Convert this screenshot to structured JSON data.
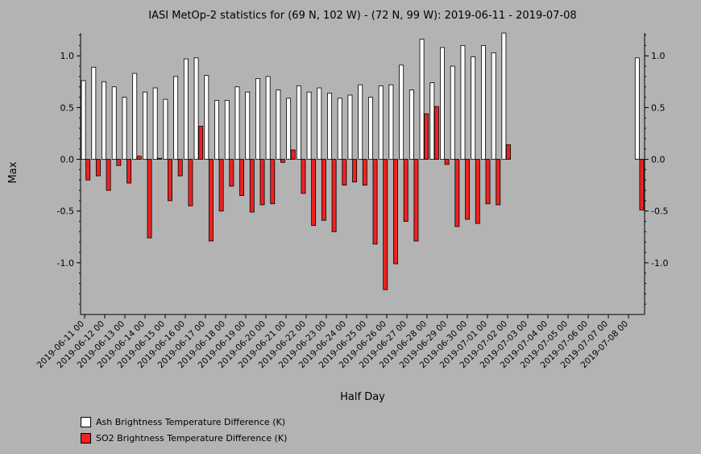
{
  "chart_data": {
    "type": "bar",
    "title": "IASI MetOp-2 statistics for (69 N, 102 W) - (72 N, 99 W): 2019-06-11 - 2019-07-08",
    "xlabel": "Half Day",
    "ylabel": "Max",
    "ylim": [
      -1.5,
      1.22
    ],
    "yticks": [
      -1.0,
      -0.5,
      0.0,
      0.5,
      1.0
    ],
    "ytick_labels": [
      "-1.0",
      "-0.5",
      "0.0",
      "0.5",
      "1.0"
    ],
    "x_tick_labels": [
      "2019-06-11 00",
      "2019-06-12 00",
      "2019-06-13 00",
      "2019-06-14 00",
      "2019-06-15 00",
      "2019-06-16 00",
      "2019-06-17 00",
      "2019-06-18 00",
      "2019-06-19 00",
      "2019-06-20 00",
      "2019-06-21 00",
      "2019-06-22 00",
      "2019-06-23 00",
      "2019-06-24 00",
      "2019-06-25 00",
      "2019-06-26 00",
      "2019-06-27 00",
      "2019-06-28 00",
      "2019-06-29 00",
      "2019-06-30 00",
      "2019-07-01 00",
      "2019-07-02 00",
      "2019-07-03 00",
      "2019-07-04 00",
      "2019-07-05 00",
      "2019-07-06 00",
      "2019-07-07 00",
      "2019-07-08 00"
    ],
    "legend_position": "bottom-left",
    "series": [
      {
        "name": "Ash Brightness Temperature Difference (K)",
        "color": "#ffffff",
        "values": [
          0.76,
          0.89,
          0.75,
          0.7,
          0.6,
          0.83,
          0.65,
          0.69,
          0.58,
          0.8,
          0.97,
          0.98,
          0.81,
          0.57,
          0.57,
          0.7,
          0.65,
          0.78,
          0.8,
          0.67,
          0.59,
          0.71,
          0.65,
          0.69,
          0.64,
          0.59,
          0.62,
          0.72,
          0.6,
          0.71,
          0.72,
          0.91,
          0.67,
          1.16,
          0.74,
          1.08,
          0.9,
          1.1,
          0.99,
          1.1,
          1.03,
          1.22,
          null,
          null,
          null,
          null,
          null,
          null,
          null,
          null,
          null,
          null,
          null,
          null,
          0.98
        ]
      },
      {
        "name": "SO2 Brightness Temperature Difference (K)",
        "color": "#ee2222",
        "values": [
          -0.2,
          -0.16,
          -0.3,
          -0.06,
          -0.23,
          0.03,
          -0.76,
          0.01,
          -0.4,
          -0.16,
          -0.45,
          0.32,
          -0.79,
          -0.5,
          -0.26,
          -0.35,
          -0.51,
          -0.44,
          -0.43,
          -0.03,
          0.09,
          -0.33,
          -0.64,
          -0.59,
          -0.7,
          -0.25,
          -0.22,
          -0.25,
          -0.82,
          -1.26,
          -1.01,
          -0.6,
          -0.79,
          0.44,
          0.51,
          -0.05,
          -0.65,
          -0.58,
          -0.62,
          -0.43,
          -0.44,
          0.14,
          null,
          null,
          null,
          null,
          null,
          null,
          null,
          null,
          null,
          null,
          null,
          null,
          -0.49
        ]
      }
    ]
  }
}
